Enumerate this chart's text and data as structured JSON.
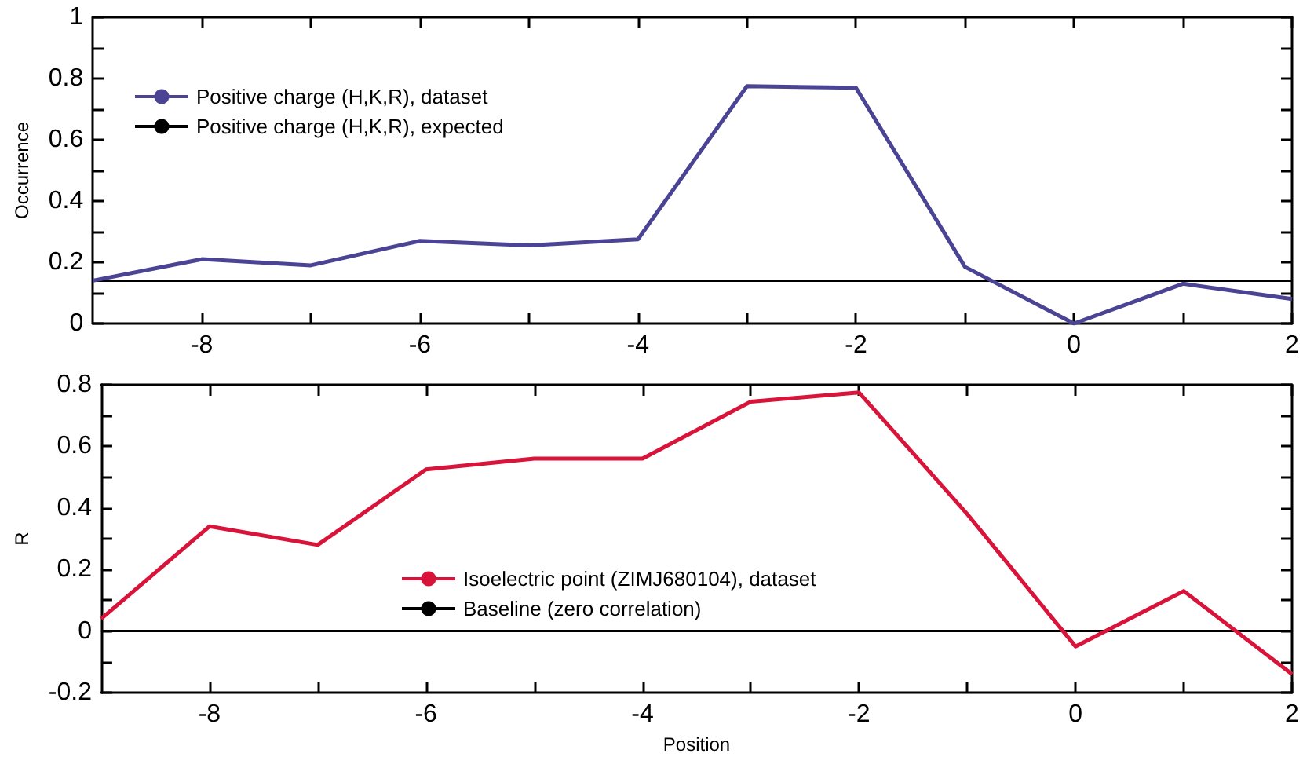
{
  "chart_data": [
    {
      "type": "line",
      "ylabel": "Occurrence",
      "x": [
        -9,
        -8,
        -7,
        -6,
        -5,
        -4,
        -3,
        -2,
        -1,
        0,
        1,
        2
      ],
      "series": [
        {
          "name": "Positive charge (H,K,R), dataset",
          "color": "#4b4494",
          "values": [
            0.14,
            0.21,
            0.19,
            0.27,
            0.255,
            0.275,
            0.775,
            0.77,
            0.185,
            0,
            0.13,
            0.08
          ]
        }
      ],
      "ref_lines": [
        {
          "axis": "y",
          "value": 0.14,
          "label": "Positive charge (H,K,R), expected",
          "color": "#000000"
        }
      ],
      "xlim": [
        -9,
        2
      ],
      "xticks": [
        -8,
        {
          "value": -7,
          "label": null
        },
        -6,
        {
          "value": -5,
          "label": null
        },
        -4,
        {
          "value": -3,
          "label": null
        },
        -2,
        {
          "value": -1,
          "label": null
        },
        0,
        {
          "value": 1,
          "label": null
        },
        2
      ],
      "ylim": [
        0,
        1
      ],
      "yticks": [
        0,
        {
          "value": 0.1,
          "label": null
        },
        0.2,
        {
          "value": 0.3,
          "label": null
        },
        0.4,
        {
          "value": 0.5,
          "label": null
        },
        0.6,
        {
          "value": 0.7,
          "label": null
        },
        0.8,
        {
          "value": 0.9,
          "label": null
        },
        1
      ],
      "grid": false,
      "legend": "top left",
      "marker": "none",
      "line_style": "solid"
    },
    {
      "type": "line",
      "xlabel": "Position",
      "ylabel": "R",
      "x": [
        -9,
        -8,
        -7,
        -6,
        -5,
        -4,
        -3,
        -2,
        -1,
        0,
        1,
        2
      ],
      "series": [
        {
          "name": "Isoelectric point (ZIMJ680104), dataset",
          "color": "#d9143a",
          "values": [
            0.04,
            0.34,
            0.28,
            0.525,
            0.56,
            0.56,
            0.745,
            0.775,
            0.38,
            -0.05,
            0.13,
            -0.14
          ]
        }
      ],
      "ref_lines": [
        {
          "axis": "y",
          "value": 0,
          "label": "Baseline (zero correlation)",
          "color": "#000000"
        }
      ],
      "xlim": [
        -9,
        2
      ],
      "xticks": [
        -8,
        {
          "value": -7,
          "label": null
        },
        -6,
        {
          "value": -5,
          "label": null
        },
        -4,
        {
          "value": -3,
          "label": null
        },
        -2,
        {
          "value": -1,
          "label": null
        },
        0,
        {
          "value": 1,
          "label": null
        },
        2
      ],
      "ylim": [
        -0.2,
        0.8
      ],
      "yticks": [
        -0.2,
        {
          "value": -0.1,
          "label": null
        },
        0,
        {
          "value": 0.1,
          "label": null
        },
        0.2,
        {
          "value": 0.3,
          "label": null
        },
        0.4,
        {
          "value": 0.5,
          "label": null
        },
        0.6,
        {
          "value": 0.7,
          "label": null
        },
        0.8
      ],
      "grid": false,
      "legend": "center",
      "marker": "none",
      "line_style": "solid"
    }
  ]
}
